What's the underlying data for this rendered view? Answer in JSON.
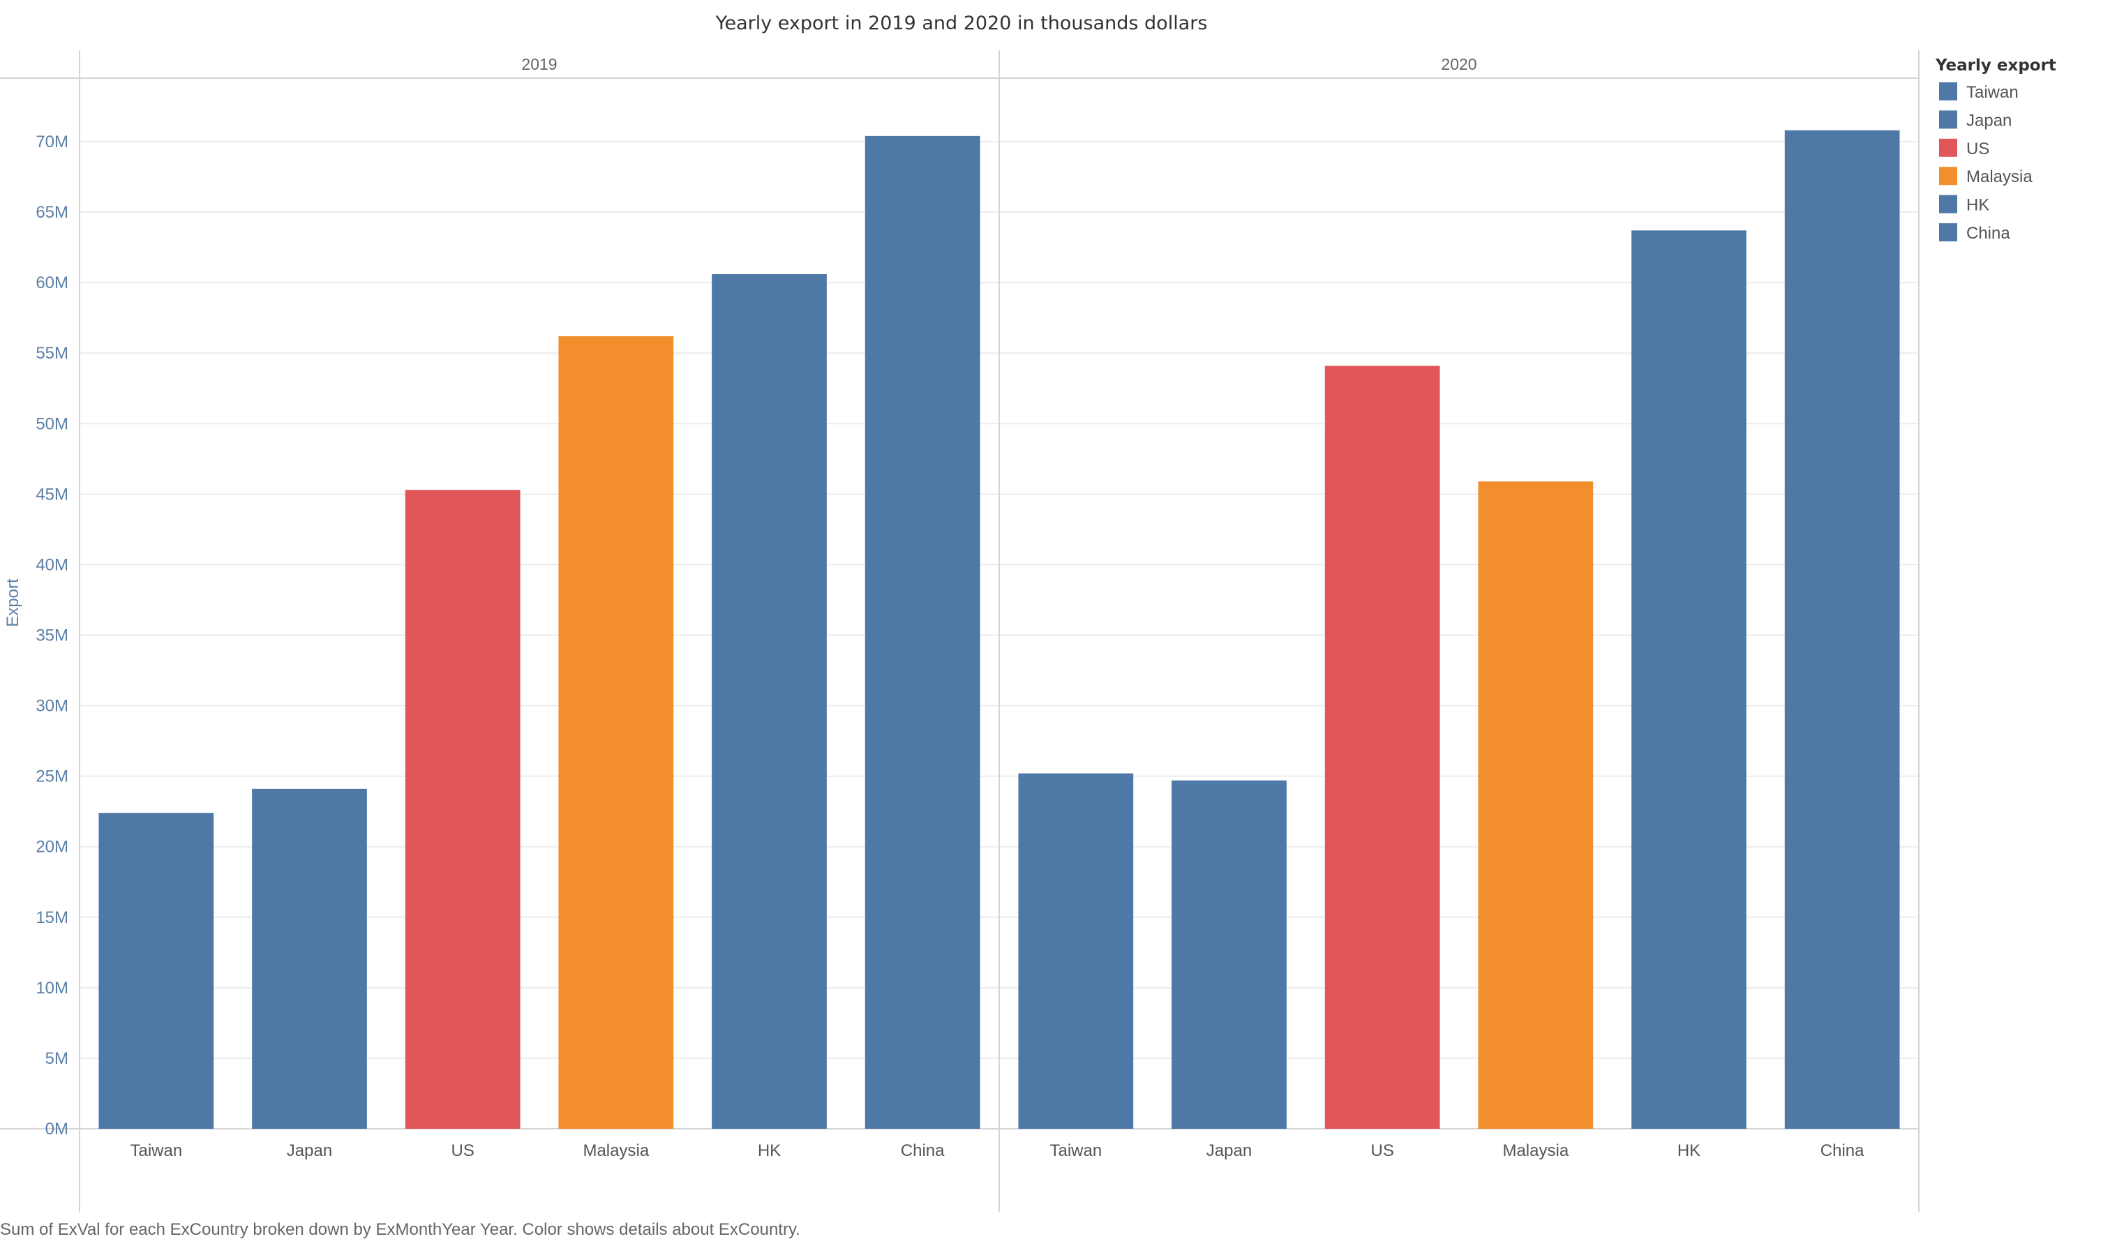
{
  "chart_data": {
    "type": "bar",
    "title": "Yearly export in 2019 and 2020 in thousands dollars",
    "ylabel": "Export",
    "xlabel": "",
    "ylim": [
      0,
      74500000
    ],
    "yticks": [
      0,
      5000000,
      10000000,
      15000000,
      20000000,
      25000000,
      30000000,
      35000000,
      40000000,
      45000000,
      50000000,
      55000000,
      60000000,
      65000000,
      70000000
    ],
    "ytick_labels": [
      "0M",
      "5M",
      "10M",
      "15M",
      "20M",
      "25M",
      "30M",
      "35M",
      "40M",
      "45M",
      "50M",
      "55M",
      "60M",
      "65M",
      "70M"
    ],
    "grid": true,
    "categories": [
      "Taiwan",
      "Japan",
      "US",
      "Malaysia",
      "HK",
      "China"
    ],
    "panels": [
      {
        "name": "2019",
        "values": [
          22400000,
          24100000,
          45300000,
          56200000,
          60600000,
          70400000
        ]
      },
      {
        "name": "2020",
        "values": [
          25200000,
          24700000,
          54100000,
          45900000,
          63700000,
          70800000
        ]
      }
    ],
    "colors": {
      "Taiwan": "#4e79a7",
      "Japan": "#4e79a7",
      "US": "#e15759",
      "Malaysia": "#f28e2b",
      "HK": "#4e79a7",
      "China": "#4e79a7"
    },
    "legend": {
      "title": "Yearly export",
      "placement": "right",
      "items": [
        "Taiwan",
        "Japan",
        "US",
        "Malaysia",
        "HK",
        "China"
      ]
    },
    "footer": "Sum of ExVal for each ExCountry broken down by ExMonthYear Year.  Color shows details about ExCountry."
  }
}
